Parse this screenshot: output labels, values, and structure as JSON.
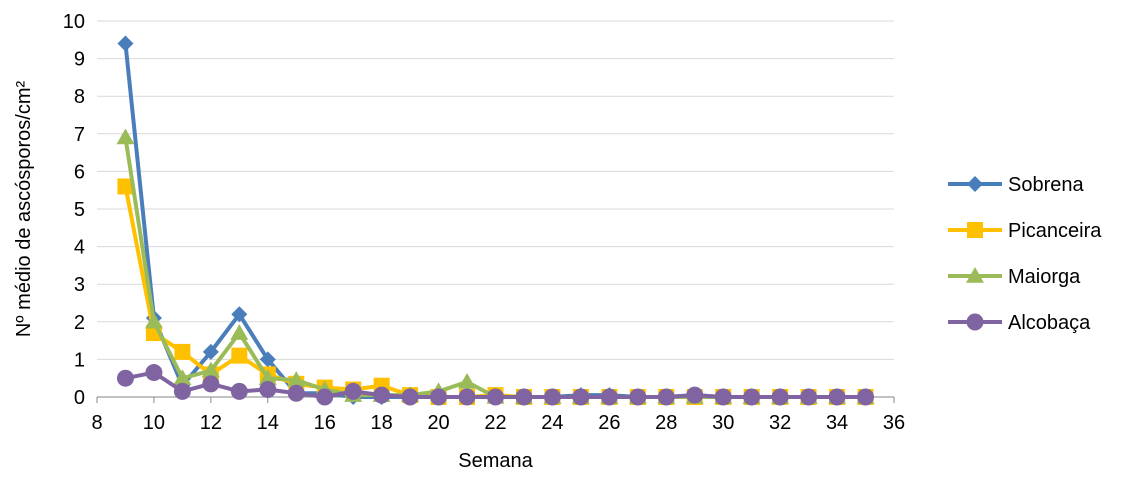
{
  "chart_data": {
    "type": "line",
    "title": "",
    "xlabel": "Semana",
    "ylabel": "Nº médio de ascósporos/cm²",
    "xlim": [
      8,
      36
    ],
    "ylim": [
      0,
      10
    ],
    "xticks": [
      8,
      10,
      12,
      14,
      16,
      18,
      20,
      22,
      24,
      26,
      28,
      30,
      32,
      34,
      36
    ],
    "yticks": [
      0,
      1,
      2,
      3,
      4,
      5,
      6,
      7,
      8,
      9,
      10
    ],
    "x": [
      9,
      10,
      11,
      12,
      13,
      14,
      15,
      16,
      17,
      18,
      19,
      20,
      21,
      22,
      23,
      24,
      25,
      26,
      27,
      28,
      29,
      30,
      31,
      32,
      33,
      34,
      35
    ],
    "grid": "horizontal",
    "legend_position": "right",
    "series": [
      {
        "name": "Sobrena",
        "color": "#4A7EBB",
        "marker": "diamond",
        "values": [
          9.4,
          2.1,
          0.3,
          1.2,
          2.2,
          1.0,
          0.1,
          0.1,
          0.0,
          0.0,
          0.0,
          0.0,
          0.0,
          0.0,
          0.0,
          0.0,
          0.05,
          0.05,
          0.0,
          0.0,
          0.05,
          0.0,
          0.0,
          0.0,
          0.0,
          0.0,
          0.0
        ]
      },
      {
        "name": "Picanceira",
        "color": "#FFC000",
        "marker": "square",
        "values": [
          5.6,
          1.7,
          1.2,
          0.6,
          1.1,
          0.6,
          0.35,
          0.25,
          0.2,
          0.3,
          0.05,
          0.0,
          0.0,
          0.05,
          0.0,
          0.0,
          0.0,
          0.0,
          0.0,
          0.0,
          0.0,
          0.0,
          0.0,
          0.0,
          0.0,
          0.0,
          0.0
        ]
      },
      {
        "name": "Maiorga",
        "color": "#9BBB59",
        "marker": "triangle",
        "values": [
          6.9,
          2.0,
          0.5,
          0.7,
          1.7,
          0.5,
          0.45,
          0.2,
          0.05,
          0.05,
          0.05,
          0.15,
          0.4,
          0.0,
          0.0,
          0.0,
          0.0,
          0.0,
          0.0,
          0.0,
          0.0,
          0.0,
          0.0,
          0.0,
          0.0,
          0.0,
          0.0
        ]
      },
      {
        "name": "Alcobaça",
        "color": "#8064A2",
        "marker": "circle",
        "values": [
          0.5,
          0.65,
          0.15,
          0.35,
          0.15,
          0.2,
          0.1,
          0.0,
          0.15,
          0.05,
          0.0,
          0.0,
          0.0,
          0.0,
          0.0,
          0.0,
          0.0,
          0.0,
          0.0,
          0.0,
          0.05,
          0.0,
          0.0,
          0.0,
          0.0,
          0.0,
          0.0
        ]
      }
    ]
  }
}
